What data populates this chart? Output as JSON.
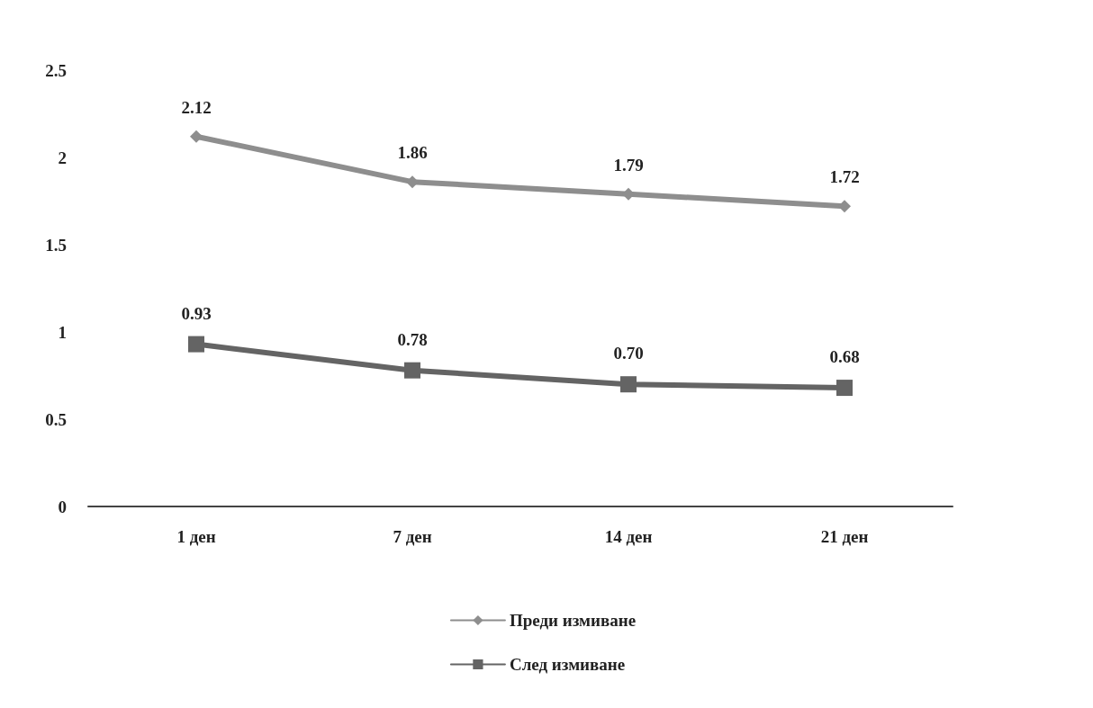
{
  "chart_data": {
    "type": "line",
    "categories": [
      "1 ден",
      "7 ден",
      "14 ден",
      "21 ден"
    ],
    "series": [
      {
        "name": "Преди измиване",
        "color": "#8e8e8e",
        "marker": "diamond",
        "values": [
          2.12,
          1.86,
          1.79,
          1.72
        ],
        "value_labels": [
          "2.12",
          "1.86",
          "1.79",
          "1.72"
        ]
      },
      {
        "name": "След измиване",
        "color": "#646464",
        "marker": "square",
        "values": [
          0.93,
          0.78,
          0.7,
          0.68
        ],
        "value_labels": [
          "0.93",
          "0.78",
          "0.70",
          "0.68"
        ]
      }
    ],
    "ylim": [
      0,
      2.5
    ],
    "yticks": [
      0,
      0.5,
      1,
      1.5,
      2,
      2.5
    ],
    "grid": false,
    "legend": "bottom",
    "line_style": "solid"
  }
}
